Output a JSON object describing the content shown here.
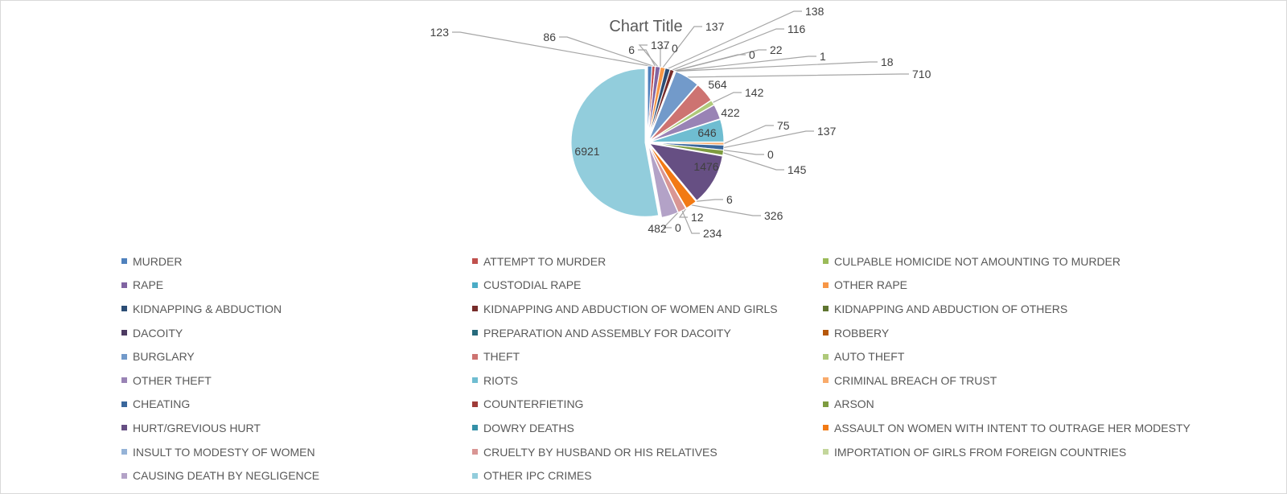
{
  "chart_data": {
    "type": "pie",
    "title": "Chart Title",
    "categories": [
      "MURDER",
      "ATTEMPT TO MURDER",
      "CULPABLE HOMICIDE NOT AMOUNTING TO MURDER",
      "RAPE",
      "CUSTODIAL RAPE",
      "OTHER RAPE",
      "KIDNAPPING & ABDUCTION",
      "KIDNAPPING AND ABDUCTION OF WOMEN AND GIRLS",
      "KIDNAPPING AND ABDUCTION OF OTHERS",
      "DACOITY",
      "PREPARATION AND ASSEMBLY FOR DACOITY",
      "ROBBERY",
      "BURGLARY",
      "THEFT",
      "AUTO THEFT",
      "OTHER THEFT",
      "RIOTS",
      "CRIMINAL BREACH OF TRUST",
      "CHEATING",
      "COUNTERFIETING",
      "ARSON",
      "HURT/GREVIOUS HURT",
      "DOWRY DEATHS",
      "ASSAULT ON WOMEN WITH INTENT TO OUTRAGE HER MODESTY",
      "INSULT TO MODESTY OF WOMEN",
      "CRUELTY BY HUSBAND OR HIS RELATIVES",
      "IMPORTATION OF GIRLS FROM FOREIGN COUNTRIES",
      "CAUSING DEATH BY NEGLIGENCE",
      "OTHER IPC CRIMES"
    ],
    "values": [
      123,
      86,
      6,
      137,
      0,
      137,
      138,
      116,
      0,
      22,
      1,
      18,
      710,
      564,
      142,
      422,
      646,
      75,
      137,
      0,
      145,
      1476,
      6,
      326,
      12,
      234,
      0,
      482,
      6921
    ],
    "colors": [
      "#4f81bd",
      "#c0504d",
      "#9bbb59",
      "#8064a2",
      "#4bacc6",
      "#f79646",
      "#2c4d75",
      "#772c2a",
      "#5f7530",
      "#4d3b62",
      "#276a7c",
      "#b65708",
      "#729aca",
      "#cd7371",
      "#afc97a",
      "#9983b5",
      "#6fbdd1",
      "#f9ab6b",
      "#3a679c",
      "#9f3b38",
      "#7e9c40",
      "#664f83",
      "#3490a7",
      "#f27a14",
      "#95b3d7",
      "#d99694",
      "#c3d69b",
      "#b3a2c7",
      "#92cddc"
    ],
    "legend_position": "bottom",
    "start_angle_deg": 0,
    "direction": "clockwise"
  }
}
